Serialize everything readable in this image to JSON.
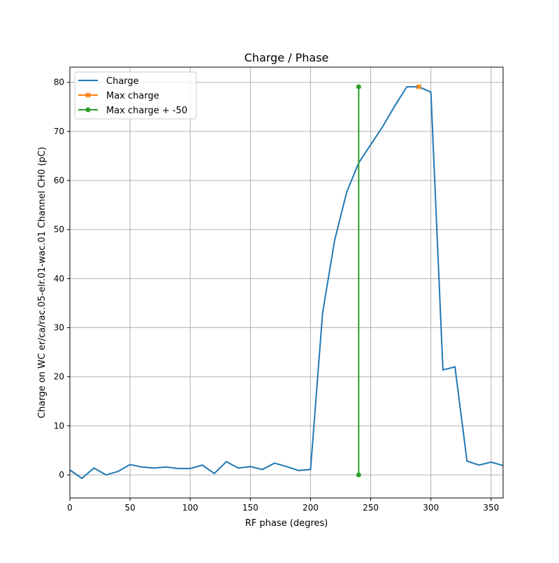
{
  "chart_data": {
    "type": "line",
    "title": "Charge / Phase",
    "xlabel": "RF phase (degres)",
    "ylabel": "Charge on WC er/ca/rac.05-elr.01-wac.01 Channel CH0 (pC)",
    "xlim": [
      0,
      360
    ],
    "ylim": [
      -4.7,
      83.1
    ],
    "xticks": [
      0,
      50,
      100,
      150,
      200,
      250,
      300,
      350
    ],
    "yticks": [
      0,
      10,
      20,
      30,
      40,
      50,
      60,
      70,
      80
    ],
    "grid": true,
    "legend_position": "top-left",
    "series": [
      {
        "name": "Charge",
        "color": "#1f77b4",
        "marker": "none",
        "x": [
          0,
          10,
          20,
          30,
          40,
          50,
          60,
          70,
          80,
          90,
          100,
          110,
          120,
          130,
          140,
          150,
          160,
          170,
          180,
          190,
          200,
          210,
          220,
          230,
          240,
          250,
          260,
          270,
          280,
          290,
          300,
          310,
          320,
          330,
          340,
          350,
          360
        ],
        "y": [
          1.0,
          -0.7,
          1.4,
          0.0,
          0.7,
          2.1,
          1.6,
          1.4,
          1.6,
          1.3,
          1.3,
          2.0,
          0.3,
          2.7,
          1.4,
          1.7,
          1.1,
          2.4,
          1.7,
          0.9,
          1.1,
          33.0,
          47.8,
          57.6,
          63.6,
          67.3,
          71.0,
          75.2,
          79.1,
          79.1,
          78.0,
          21.4,
          22.0,
          2.8,
          2.0,
          2.6,
          1.9
        ]
      },
      {
        "name": "Max charge",
        "color": "#ff7f0e",
        "marker": "x",
        "x": [
          290
        ],
        "y": [
          79.1
        ]
      },
      {
        "name": "Max charge + -50",
        "color": "#2ca02c",
        "marker": "o",
        "x": [
          240,
          240
        ],
        "y": [
          0,
          79.1
        ]
      }
    ]
  }
}
